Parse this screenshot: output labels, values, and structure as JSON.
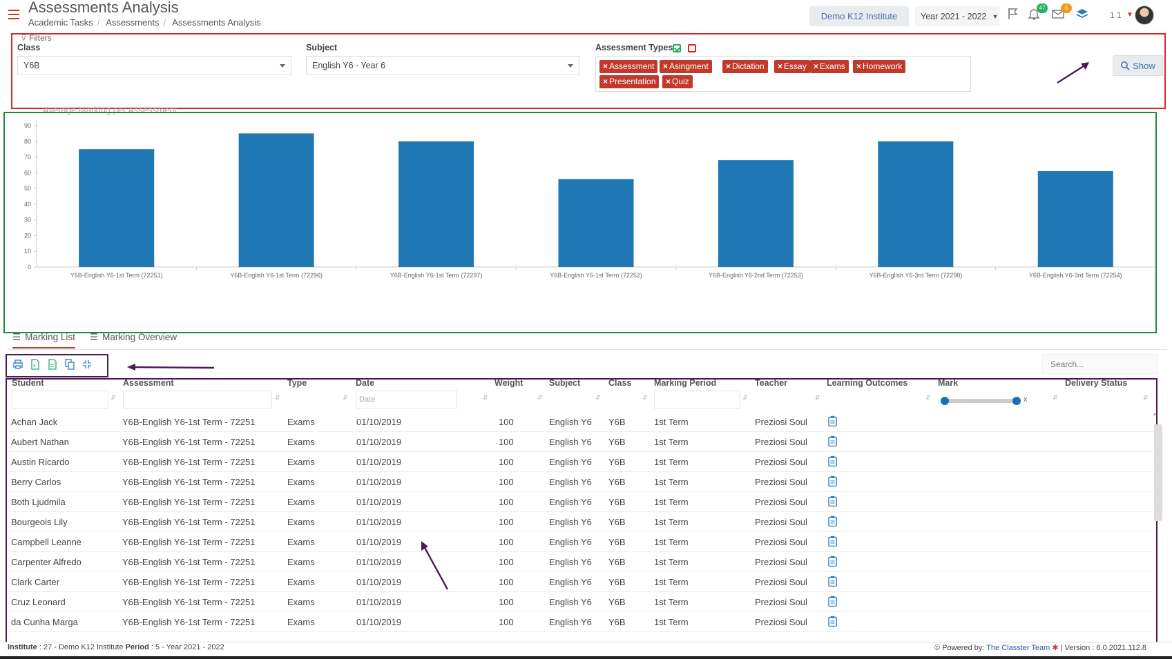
{
  "header": {
    "title": "Assessments Analysis",
    "breadcrumb": [
      "Academic Tasks",
      "Assessments",
      "Assessments Analysis"
    ],
    "institute_button": "Demo K12 Institute",
    "year_select": "Year 2021 - 2022",
    "notifications_count": "47",
    "messages_count": "6",
    "user_count": "1 1"
  },
  "filters": {
    "label": "Filters",
    "class_label": "Class",
    "class_value": "Y6B",
    "subject_label": "Subject",
    "subject_value": "English Y6 - Year 6",
    "types_label": "Assessment Types",
    "types": [
      "Assessment",
      "Asingment",
      "Dictation",
      "Essay",
      "Exams",
      "Homework",
      "Presentation",
      "Quiz"
    ],
    "show_button": "Show"
  },
  "chart_data": {
    "type": "bar",
    "title": "Average Marking per Assessment",
    "categories": [
      "Y6B-English Y6-1st Term (72251)",
      "Y6B-English Y6-1st Term (72296)",
      "Y6B-English Y6-1st Term (72297)",
      "Y6B-English Y6-1st Term (72252)",
      "Y6B-English Y6-2nd Term (72253)",
      "Y6B-English Y6-3rd Term (72298)",
      "Y6B-English Y6-3rd Term (72254)"
    ],
    "values": [
      75,
      85,
      80,
      56,
      68,
      80,
      61
    ],
    "ylim": [
      0,
      90
    ],
    "yticks": [
      0,
      10,
      20,
      30,
      40,
      50,
      60,
      70,
      80,
      90
    ],
    "bar_color": "#1f77b4",
    "grid": false
  },
  "tabs": [
    {
      "label": "Marking List",
      "active": true
    },
    {
      "label": "Marking Overview",
      "active": false
    }
  ],
  "toolbar": {
    "search_placeholder": "Search..."
  },
  "table": {
    "columns": [
      "Student",
      "Assessment",
      "Type",
      "Date",
      "Weight",
      "Subject",
      "Class",
      "Marking Period",
      "Teacher",
      "Learning Outcomes",
      "Mark",
      "Delivery Status"
    ],
    "date_placeholder": "Date",
    "rows": [
      [
        "Achan Jack",
        "Y6B-English Y6-1st Term - 72251",
        "Exams",
        "01/10/2019",
        "100",
        "English Y6",
        "Y6B",
        "1st Term",
        "Preziosi Soul"
      ],
      [
        "Aubert Nathan",
        "Y6B-English Y6-1st Term - 72251",
        "Exams",
        "01/10/2019",
        "100",
        "English Y6",
        "Y6B",
        "1st Term",
        "Preziosi Soul"
      ],
      [
        "Austin Ricardo",
        "Y6B-English Y6-1st Term - 72251",
        "Exams",
        "01/10/2019",
        "100",
        "English Y6",
        "Y6B",
        "1st Term",
        "Preziosi Soul"
      ],
      [
        "Berry Carlos",
        "Y6B-English Y6-1st Term - 72251",
        "Exams",
        "01/10/2019",
        "100",
        "English Y6",
        "Y6B",
        "1st Term",
        "Preziosi Soul"
      ],
      [
        "Both Ljudmila",
        "Y6B-English Y6-1st Term - 72251",
        "Exams",
        "01/10/2019",
        "100",
        "English Y6",
        "Y6B",
        "1st Term",
        "Preziosi Soul"
      ],
      [
        "Bourgeois Lily",
        "Y6B-English Y6-1st Term - 72251",
        "Exams",
        "01/10/2019",
        "100",
        "English Y6",
        "Y6B",
        "1st Term",
        "Preziosi Soul"
      ],
      [
        "Campbell Leanne",
        "Y6B-English Y6-1st Term - 72251",
        "Exams",
        "01/10/2019",
        "100",
        "English Y6",
        "Y6B",
        "1st Term",
        "Preziosi Soul"
      ],
      [
        "Carpenter Alfredo",
        "Y6B-English Y6-1st Term - 72251",
        "Exams",
        "01/10/2019",
        "100",
        "English Y6",
        "Y6B",
        "1st Term",
        "Preziosi Soul"
      ],
      [
        "Clark Carter",
        "Y6B-English Y6-1st Term - 72251",
        "Exams",
        "01/10/2019",
        "100",
        "English Y6",
        "Y6B",
        "1st Term",
        "Preziosi Soul"
      ],
      [
        "Cruz Leonard",
        "Y6B-English Y6-1st Term - 72251",
        "Exams",
        "01/10/2019",
        "100",
        "English Y6",
        "Y6B",
        "1st Term",
        "Preziosi Soul"
      ],
      [
        "da Cunha Marga",
        "Y6B-English Y6-1st Term - 72251",
        "Exams",
        "01/10/2019",
        "100",
        "English Y6",
        "Y6B",
        "1st Term",
        "Preziosi Soul"
      ]
    ]
  },
  "footer": {
    "institute_label": "Institute",
    "institute_value": ": 27 - Demo K12 Institute",
    "period_label": "Period",
    "period_value": ": 5 - Year 2021 - 2022",
    "powered_by": "Powered by:",
    "powered_link": "The Classter Team",
    "version": "| Version : 6.0.2021.112.8"
  },
  "colors": {
    "accent": "#c0392b",
    "filter_border": "#e02424",
    "chart_border": "#1f8b3a",
    "table_border": "#4b1a56"
  },
  "icons": [
    "hamburger-icon",
    "flag-icon",
    "bell-icon",
    "mail-icon",
    "layers-icon",
    "search-icon",
    "print-icon",
    "excel-icon",
    "csv-icon",
    "copy-icon",
    "compress-icon",
    "clipboard-icon",
    "list-icon"
  ]
}
